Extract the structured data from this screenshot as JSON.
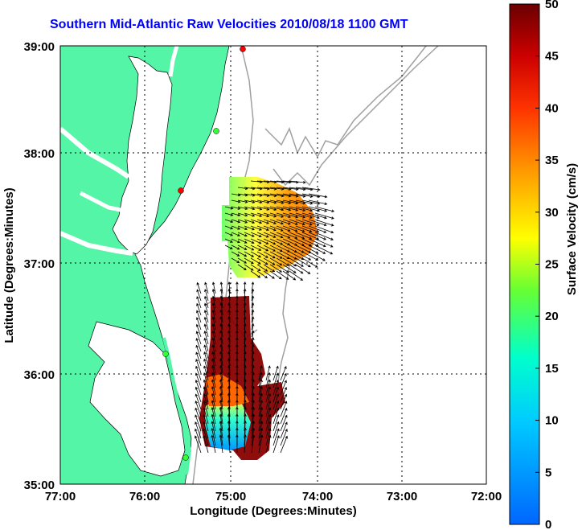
{
  "title": "Southern Mid-Atlantic Raw Velocities 2010/08/18 1100 GMT",
  "x_axis": {
    "label": "Longitude (Degrees:Minutes)",
    "ticks": [
      "77:00",
      "76:00",
      "75:00",
      "74:00",
      "73:00",
      "72:00"
    ]
  },
  "y_axis": {
    "label": "Latitude (Degrees:Minutes)",
    "ticks": [
      "39:00",
      "38:00",
      "37:00",
      "36:00",
      "35:00"
    ]
  },
  "colorbar": {
    "label": "Surface Velocity (cm/s)",
    "ticks": [
      "0",
      "5",
      "10",
      "15",
      "20",
      "25",
      "30",
      "35",
      "40",
      "45",
      "50"
    ],
    "range": [
      0,
      50
    ]
  },
  "colors": {
    "land": "#55f5a8",
    "title": "#0000ff",
    "bathymetry": "#a0a0a0"
  }
}
